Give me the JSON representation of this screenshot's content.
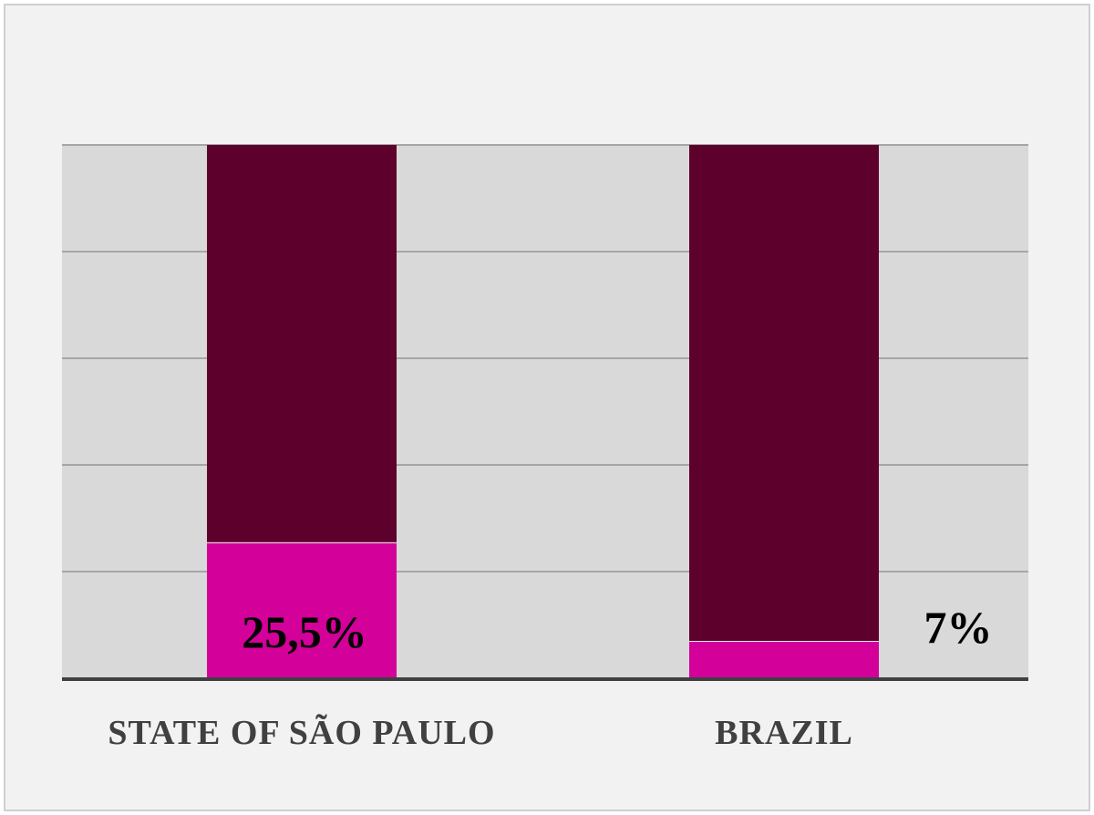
{
  "chart_data": {
    "type": "bar",
    "stacked": true,
    "percent_stacked": true,
    "categories": [
      "STATE OF SÃO PAULO",
      "BRAZIL"
    ],
    "series": [
      {
        "values": [
          25.5,
          7
        ],
        "color": "#d4009a"
      },
      {
        "values": [
          74.5,
          93
        ],
        "color": "#5e002c"
      }
    ],
    "data_labels": [
      "25,5%",
      "7%"
    ],
    "ylim": [
      0,
      100
    ],
    "grid": true,
    "gridline_count": 5,
    "plot_background": "#d9d9d9",
    "page_background": "#f2f2f2",
    "axis_color": "#404040",
    "gridline_color": "#a6a6a6"
  }
}
